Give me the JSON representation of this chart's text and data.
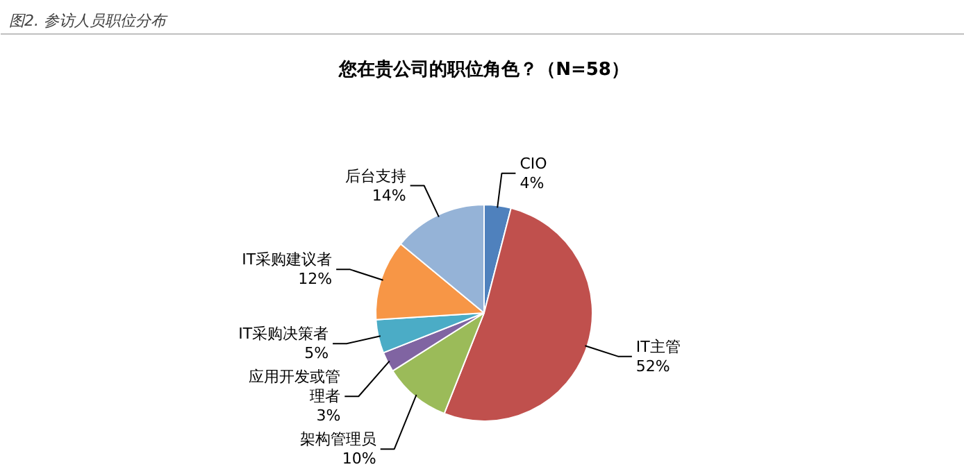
{
  "chart_data": {
    "type": "pie",
    "title": "您在贵公司的职位角色？（N=58）",
    "annotations": [
      "图2. 参访人员职位分布"
    ],
    "categories": [
      "CIO",
      "IT主管",
      "架构管理员",
      "应用开发或管理者",
      "IT采购决策者",
      "IT采购建议者",
      "后台支持"
    ],
    "values": [
      4,
      52,
      10,
      3,
      5,
      12,
      14
    ],
    "value_labels": [
      "4%",
      "52%",
      "10%",
      "3%",
      "5%",
      "12%",
      "14%"
    ],
    "colors": [
      "#4f81bd",
      "#c0504d",
      "#9bbb59",
      "#8064a2",
      "#4bacc6",
      "#f79646",
      "#95b3d7"
    ]
  }
}
